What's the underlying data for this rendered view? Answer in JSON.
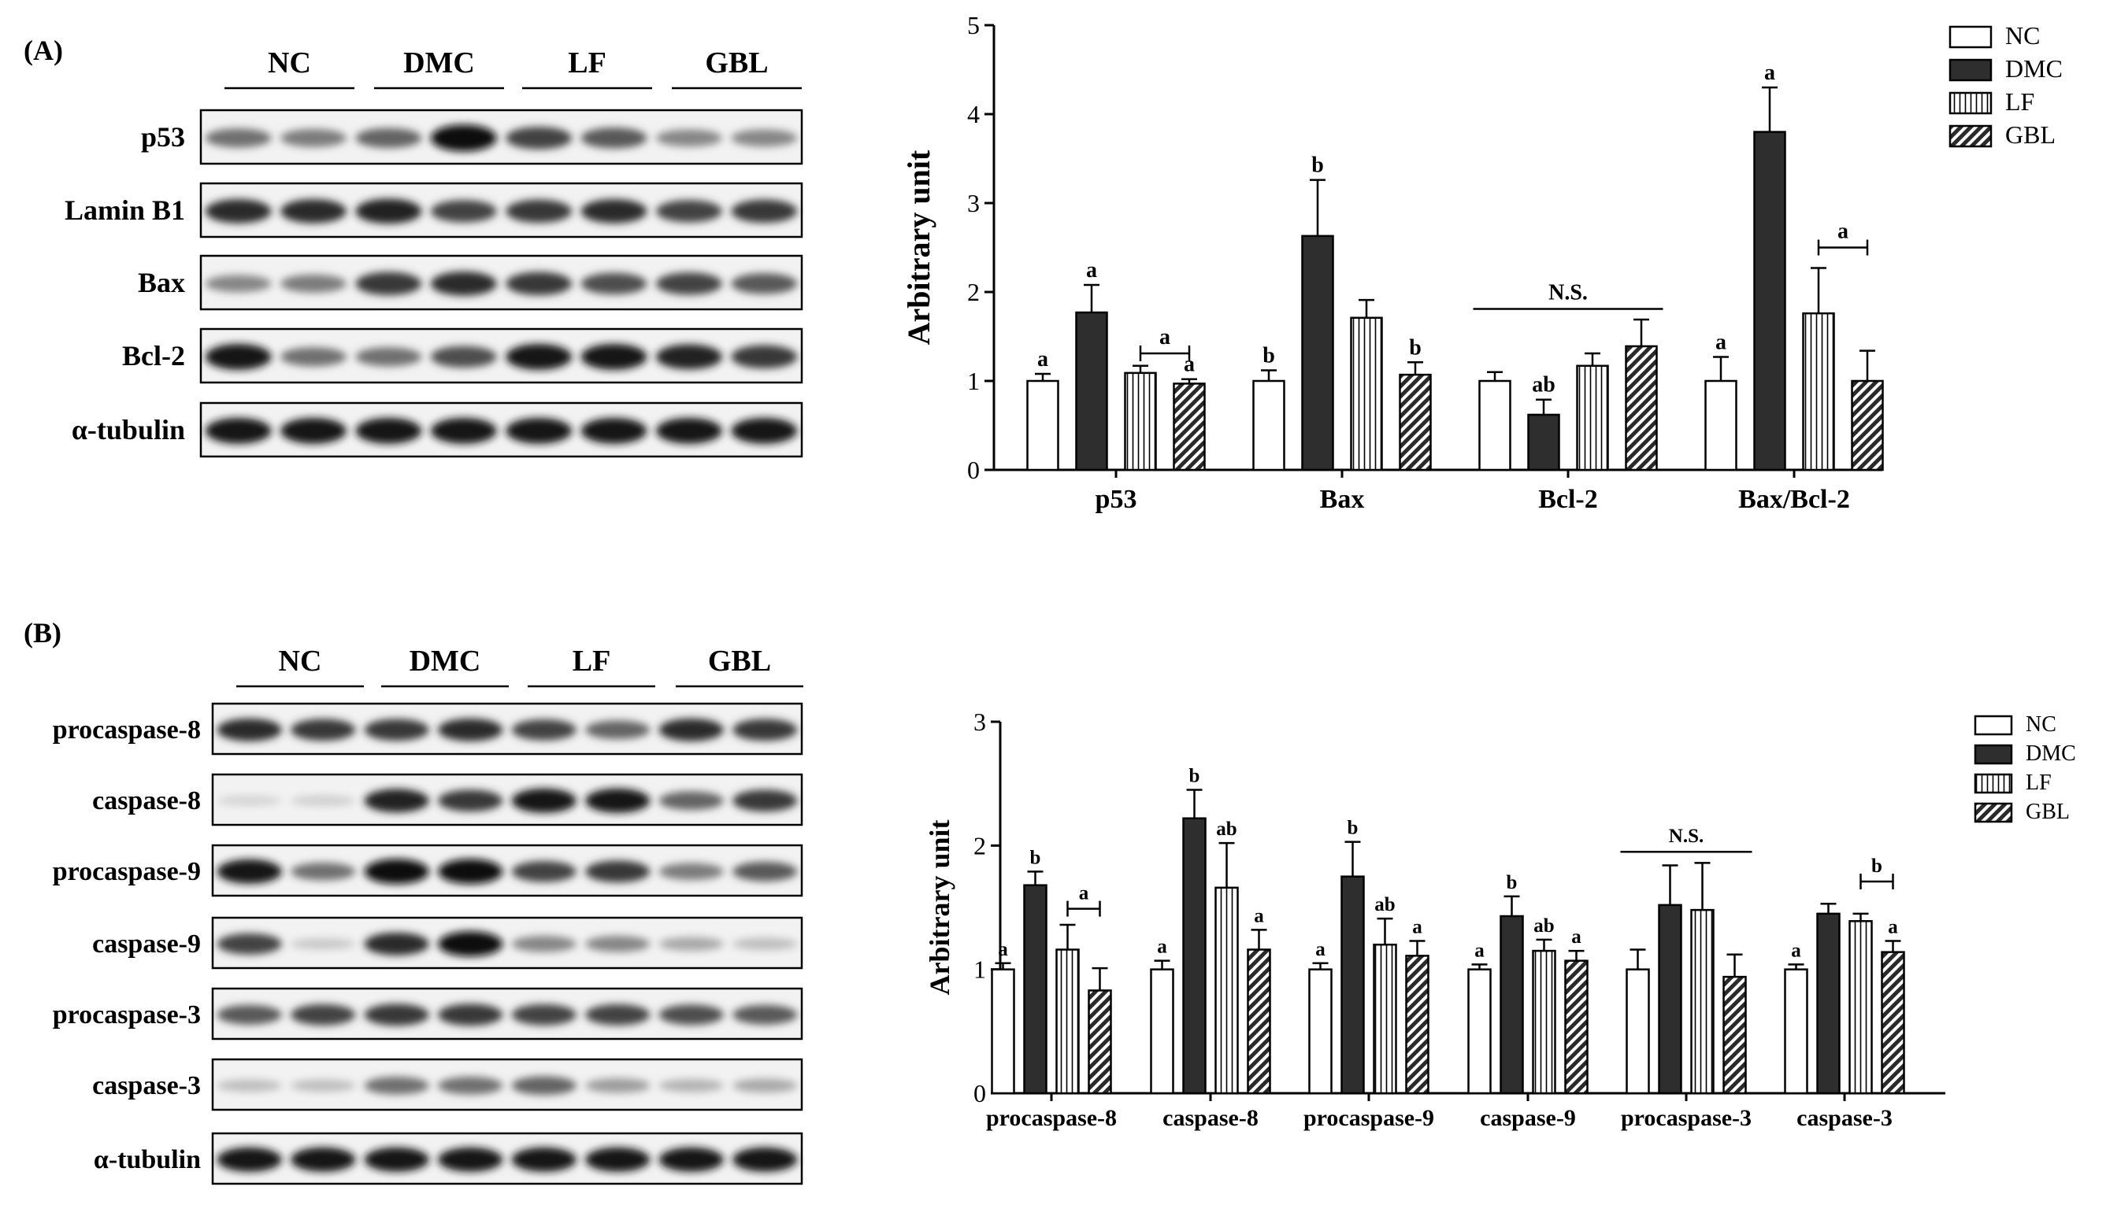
{
  "panels": {
    "a": "(A)",
    "b": "(B)"
  },
  "blot_a": {
    "groups": [
      "NC",
      "DMC",
      "LF",
      "GBL"
    ],
    "rows": [
      "p53",
      "Lamin B1",
      "Bax",
      "Bcl-2",
      "α-tubulin"
    ],
    "band_intensity": [
      [
        0.55,
        0.5,
        0.6,
        1.0,
        0.75,
        0.65,
        0.45,
        0.45
      ],
      [
        0.85,
        0.85,
        0.9,
        0.75,
        0.8,
        0.85,
        0.75,
        0.8
      ],
      [
        0.45,
        0.5,
        0.8,
        0.85,
        0.8,
        0.7,
        0.75,
        0.65
      ],
      [
        0.95,
        0.55,
        0.55,
        0.7,
        0.95,
        0.95,
        0.9,
        0.8
      ],
      [
        0.95,
        0.95,
        0.95,
        0.95,
        0.95,
        0.95,
        0.95,
        0.95
      ]
    ]
  },
  "blot_b": {
    "groups": [
      "NC",
      "DMC",
      "LF",
      "GBL"
    ],
    "rows": [
      "procaspase-8",
      "caspase-8",
      "procaspase-9",
      "caspase-9",
      "procaspase-3",
      "caspase-3",
      "α-tubulin"
    ],
    "band_intensity": [
      [
        0.85,
        0.8,
        0.8,
        0.85,
        0.75,
        0.6,
        0.85,
        0.8
      ],
      [
        0.1,
        0.12,
        0.9,
        0.8,
        0.95,
        0.95,
        0.6,
        0.8
      ],
      [
        0.95,
        0.55,
        1.0,
        1.0,
        0.75,
        0.8,
        0.5,
        0.65
      ],
      [
        0.75,
        0.15,
        0.85,
        1.0,
        0.45,
        0.45,
        0.3,
        0.2
      ],
      [
        0.65,
        0.75,
        0.8,
        0.8,
        0.75,
        0.75,
        0.7,
        0.65
      ],
      [
        0.2,
        0.2,
        0.55,
        0.55,
        0.6,
        0.35,
        0.25,
        0.3
      ],
      [
        0.95,
        0.95,
        0.95,
        0.95,
        0.95,
        0.95,
        0.95,
        0.95
      ]
    ]
  },
  "colors": {
    "bar_fill_dark": "#2e2e2e",
    "axis": "#000000",
    "membrane": "#f2f2f2"
  },
  "chart_data": [
    {
      "type": "bar",
      "ylabel": "Arbitrary unit",
      "ylim": [
        0,
        5
      ],
      "yticks": [
        "0",
        "1",
        "2",
        "3",
        "4",
        "5"
      ],
      "categories": [
        "p53",
        "Bax",
        "Bcl-2",
        "Bax/Bcl-2"
      ],
      "series": [
        {
          "name": "NC",
          "pattern": "open",
          "values": [
            1.0,
            1.0,
            1.0,
            1.0
          ],
          "errors": [
            0.08,
            0.12,
            0.1,
            0.27
          ]
        },
        {
          "name": "DMC",
          "pattern": "solid",
          "values": [
            1.77,
            2.63,
            0.62,
            3.8
          ],
          "errors": [
            0.31,
            0.63,
            0.17,
            0.5
          ]
        },
        {
          "name": "LF",
          "pattern": "vertical",
          "values": [
            1.09,
            1.71,
            1.17,
            1.76
          ],
          "errors": [
            0.08,
            0.2,
            0.14,
            0.51
          ]
        },
        {
          "name": "GBL",
          "pattern": "diagonal",
          "values": [
            0.97,
            1.07,
            1.39,
            1.0
          ],
          "errors": [
            0.05,
            0.14,
            0.3,
            0.34
          ]
        }
      ],
      "labels": [
        [
          "a",
          "b",
          "",
          "a"
        ],
        [
          "a",
          "b",
          "ab",
          "a"
        ],
        [
          "",
          "",
          "",
          ""
        ],
        [
          "a",
          "b",
          "",
          ""
        ]
      ],
      "brackets": [
        {
          "category": 0,
          "label": "a",
          "value": 1.31
        },
        {
          "category": 2,
          "label": "N.S.",
          "value": 1.81
        },
        {
          "category": 3,
          "label": "a",
          "value": 2.5
        }
      ],
      "legend_position": "top-right"
    },
    {
      "type": "bar",
      "ylabel": "Arbitrary unit",
      "ylim": [
        0,
        3
      ],
      "yticks": [
        "0",
        "1",
        "2",
        "3"
      ],
      "categories": [
        "procaspase-8",
        "caspase-8",
        "procaspase-9",
        "caspase-9",
        "procaspase-3",
        "caspase-3"
      ],
      "series": [
        {
          "name": "NC",
          "pattern": "open",
          "values": [
            1.0,
            1.0,
            1.0,
            1.0,
            1.0,
            1.0
          ],
          "errors": [
            0.05,
            0.07,
            0.05,
            0.04,
            0.16,
            0.04
          ]
        },
        {
          "name": "DMC",
          "pattern": "solid",
          "values": [
            1.68,
            2.22,
            1.75,
            1.43,
            1.52,
            1.45
          ],
          "errors": [
            0.11,
            0.23,
            0.28,
            0.16,
            0.32,
            0.08
          ]
        },
        {
          "name": "LF",
          "pattern": "vertical",
          "values": [
            1.16,
            1.66,
            1.2,
            1.15,
            1.48,
            1.39
          ],
          "errors": [
            0.2,
            0.36,
            0.21,
            0.09,
            0.38,
            0.06
          ]
        },
        {
          "name": "GBL",
          "pattern": "diagonal",
          "values": [
            0.83,
            1.16,
            1.11,
            1.07,
            0.94,
            1.14
          ],
          "errors": [
            0.18,
            0.16,
            0.12,
            0.08,
            0.18,
            0.09
          ]
        }
      ],
      "labels": [
        [
          "a",
          "a",
          "a",
          "a",
          "",
          "a"
        ],
        [
          "b",
          "b",
          "b",
          "b",
          "",
          ""
        ],
        [
          "",
          "ab",
          "ab",
          "ab",
          "",
          ""
        ],
        [
          "",
          "a",
          "a",
          "a",
          "",
          "a"
        ]
      ],
      "brackets": [
        {
          "category": 0,
          "label": "a",
          "value": 1.49
        },
        {
          "category": 4,
          "label": "N.S.",
          "value": 1.95
        },
        {
          "category": 5,
          "label": "b",
          "value": 1.71
        }
      ],
      "legend_position": "top-right"
    }
  ]
}
